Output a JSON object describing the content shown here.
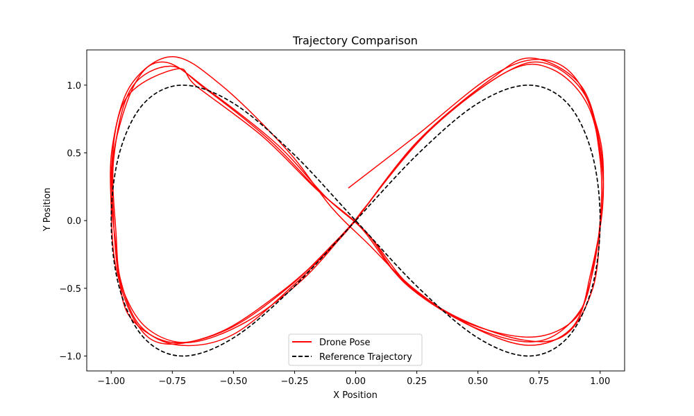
{
  "chart_data": {
    "type": "line",
    "title": "Trajectory Comparison",
    "xlabel": "X Position",
    "ylabel": "Y Position",
    "xlim": [
      -1.1,
      1.1
    ],
    "ylim": [
      -1.11,
      1.26
    ],
    "xticks": [
      -1.0,
      -0.75,
      -0.5,
      -0.25,
      0.0,
      0.25,
      0.5,
      0.75,
      1.0
    ],
    "xtick_labels": [
      "−1.00",
      "−0.75",
      "−0.50",
      "−0.25",
      "0.00",
      "0.25",
      "0.50",
      "0.75",
      "1.00"
    ],
    "yticks": [
      -1.0,
      -0.5,
      0.0,
      0.5,
      1.0
    ],
    "ytick_labels": [
      "−1.0",
      "−0.5",
      "0.0",
      "0.5",
      "1.0"
    ],
    "grid": false,
    "legend_position": "bottom-center",
    "series": [
      {
        "name": "Drone Pose",
        "color": "#ff0000",
        "style": "solid",
        "laps": [
          [
            [
              -0.03,
              0.24
            ],
            [
              0.25,
              0.63
            ],
            [
              0.55,
              1.06
            ],
            [
              0.75,
              1.19
            ],
            [
              0.9,
              1.05
            ],
            [
              1.0,
              0.6
            ],
            [
              1.01,
              0.15
            ],
            [
              0.98,
              -0.25
            ],
            [
              0.92,
              -0.66
            ],
            [
              0.75,
              -0.89
            ],
            [
              0.5,
              -0.8
            ],
            [
              0.25,
              -0.52
            ],
            [
              0.05,
              -0.17
            ],
            [
              -0.1,
              0.1
            ],
            [
              -0.28,
              0.52
            ],
            [
              -0.55,
              1.0
            ],
            [
              -0.75,
              1.21
            ],
            [
              -0.92,
              1.0
            ],
            [
              -0.995,
              0.55
            ],
            [
              -1.0,
              0.1
            ],
            [
              -0.98,
              -0.35
            ],
            [
              -0.9,
              -0.75
            ],
            [
              -0.78,
              -0.91
            ],
            [
              -0.55,
              -0.82
            ],
            [
              -0.3,
              -0.52
            ],
            [
              -0.1,
              -0.2
            ],
            [
              0.0,
              0.0
            ]
          ],
          [
            [
              0.0,
              0.0
            ],
            [
              0.25,
              0.58
            ],
            [
              0.55,
              1.04
            ],
            [
              0.72,
              1.2
            ],
            [
              0.92,
              1.0
            ],
            [
              1.0,
              0.55
            ],
            [
              1.01,
              0.1
            ],
            [
              0.96,
              -0.4
            ],
            [
              0.9,
              -0.72
            ],
            [
              0.72,
              -0.86
            ],
            [
              0.45,
              -0.75
            ],
            [
              0.22,
              -0.48
            ],
            [
              0.05,
              -0.1
            ],
            [
              -0.12,
              0.17
            ],
            [
              -0.32,
              0.56
            ],
            [
              -0.6,
              0.96
            ],
            [
              -0.78,
              1.17
            ],
            [
              -0.9,
              1.02
            ],
            [
              -0.99,
              0.5
            ],
            [
              -0.99,
              0.0
            ],
            [
              -0.97,
              -0.4
            ],
            [
              -0.92,
              -0.72
            ],
            [
              -0.75,
              -0.9
            ],
            [
              -0.52,
              -0.8
            ],
            [
              -0.28,
              -0.5
            ],
            [
              -0.08,
              -0.15
            ],
            [
              0.02,
              0.05
            ]
          ],
          [
            [
              0.02,
              0.05
            ],
            [
              0.28,
              0.63
            ],
            [
              0.6,
              1.08
            ],
            [
              0.78,
              1.16
            ],
            [
              0.94,
              0.92
            ],
            [
              1.0,
              0.45
            ],
            [
              1.0,
              0.0
            ],
            [
              0.96,
              -0.45
            ],
            [
              0.88,
              -0.8
            ],
            [
              0.7,
              -0.92
            ],
            [
              0.45,
              -0.76
            ],
            [
              0.2,
              -0.46
            ],
            [
              0.04,
              -0.08
            ],
            [
              -0.14,
              0.2
            ],
            [
              -0.35,
              0.59
            ],
            [
              -0.62,
              0.98
            ],
            [
              -0.76,
              1.14
            ],
            [
              -0.92,
              0.97
            ],
            [
              -0.99,
              0.45
            ],
            [
              -0.98,
              -0.1
            ],
            [
              -0.96,
              -0.45
            ],
            [
              -0.88,
              -0.78
            ],
            [
              -0.72,
              -0.92
            ],
            [
              -0.5,
              -0.84
            ],
            [
              -0.25,
              -0.47
            ],
            [
              -0.06,
              -0.12
            ],
            [
              0.03,
              0.08
            ]
          ],
          [
            [
              0.03,
              0.08
            ],
            [
              0.3,
              0.66
            ],
            [
              0.62,
              1.1
            ],
            [
              0.8,
              1.12
            ],
            [
              0.95,
              0.85
            ],
            [
              1.01,
              0.35
            ],
            [
              1.0,
              -0.05
            ],
            [
              0.97,
              -0.5
            ],
            [
              0.86,
              -0.84
            ],
            [
              0.68,
              -0.88
            ],
            [
              0.4,
              -0.7
            ],
            [
              0.18,
              -0.42
            ],
            [
              0.02,
              -0.05
            ],
            [
              -0.16,
              0.23
            ],
            [
              -0.38,
              0.62
            ],
            [
              -0.65,
              0.99
            ],
            [
              -0.73,
              1.12
            ],
            [
              -0.94,
              0.9
            ],
            [
              -1.0,
              0.35
            ],
            [
              -0.98,
              -0.2
            ],
            [
              -0.95,
              -0.52
            ],
            [
              -0.85,
              -0.8
            ],
            [
              -0.68,
              -0.9
            ],
            [
              -0.45,
              -0.75
            ],
            [
              -0.22,
              -0.44
            ],
            [
              -0.04,
              -0.08
            ],
            [
              0.04,
              0.1
            ]
          ]
        ]
      },
      {
        "name": "Reference Trajectory",
        "color": "#000000",
        "style": "dashed",
        "parametric": "x = sin(t), y = sin(2t)",
        "points": [
          [
            0.0,
            0.0
          ],
          [
            0.259,
            0.5
          ],
          [
            0.5,
            0.866
          ],
          [
            0.707,
            1.0
          ],
          [
            0.866,
            0.866
          ],
          [
            0.966,
            0.5
          ],
          [
            1.0,
            0.0
          ],
          [
            0.966,
            -0.5
          ],
          [
            0.866,
            -0.866
          ],
          [
            0.707,
            -1.0
          ],
          [
            0.5,
            -0.866
          ],
          [
            0.259,
            -0.5
          ],
          [
            0.0,
            0.0
          ],
          [
            -0.259,
            0.5
          ],
          [
            -0.5,
            0.866
          ],
          [
            -0.707,
            1.0
          ],
          [
            -0.866,
            0.866
          ],
          [
            -0.966,
            0.5
          ],
          [
            -1.0,
            0.0
          ],
          [
            -0.966,
            -0.5
          ],
          [
            -0.866,
            -0.866
          ],
          [
            -0.707,
            -1.0
          ],
          [
            -0.5,
            -0.866
          ],
          [
            -0.259,
            -0.5
          ],
          [
            0.0,
            0.0
          ]
        ]
      }
    ]
  }
}
